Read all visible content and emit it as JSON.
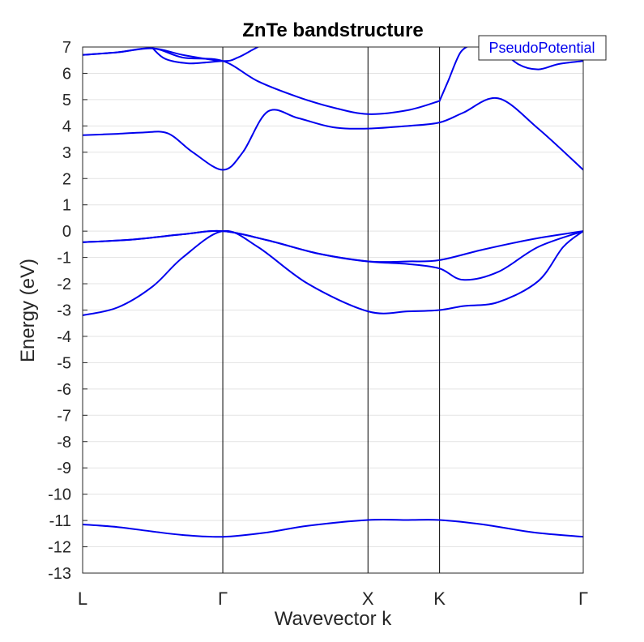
{
  "chart_data": {
    "type": "line",
    "title": "ZnTe bandstructure",
    "xlabel": "Wavevector k",
    "ylabel": "Energy (eV)",
    "ylim": [
      -13,
      7
    ],
    "yticks": [
      7,
      6,
      5,
      4,
      3,
      2,
      1,
      0,
      -1,
      -2,
      -3,
      -4,
      -5,
      -6,
      -7,
      -8,
      -9,
      -10,
      -11,
      -12,
      -13
    ],
    "x_range": [
      0,
      1
    ],
    "kpoints": [
      {
        "label": "L",
        "x": 0.0
      },
      {
        "label": "Γ",
        "x": 0.28
      },
      {
        "label": "X",
        "x": 0.57
      },
      {
        "label": "K",
        "x": 0.713
      },
      {
        "label": "Γ",
        "x": 1.0
      }
    ],
    "grid": "horizontal",
    "legend": {
      "position": "top-right",
      "entries": [
        "PseudoPotential"
      ]
    },
    "series_color": "#0000ee",
    "series": [
      {
        "x": [
          0,
          0.07,
          0.14,
          0.2,
          0.28,
          0.37,
          0.45,
          0.57,
          0.65,
          0.713,
          0.8,
          0.9,
          1.0
        ],
        "values": [
          -11.15,
          -11.25,
          -11.42,
          -11.55,
          -11.62,
          -11.45,
          -11.2,
          -10.98,
          -10.98,
          -10.98,
          -11.15,
          -11.45,
          -11.62
        ]
      },
      {
        "x": [
          0,
          0.07,
          0.14,
          0.2,
          0.28,
          0.35,
          0.45,
          0.57,
          0.65,
          0.713,
          0.76,
          0.83,
          0.91,
          0.96,
          1.0
        ],
        "values": [
          -3.2,
          -2.9,
          -2.1,
          -1.0,
          0.0,
          -0.6,
          -2.0,
          -3.05,
          -3.05,
          -3.0,
          -2.85,
          -2.7,
          -1.9,
          -0.6,
          0.0
        ]
      },
      {
        "x": [
          0,
          0.1,
          0.2,
          0.28,
          0.37,
          0.47,
          0.57,
          0.65,
          0.713,
          0.76,
          0.83,
          0.91,
          1.0
        ],
        "values": [
          -0.42,
          -0.32,
          -0.12,
          0.0,
          -0.35,
          -0.85,
          -1.15,
          -1.25,
          -1.42,
          -1.85,
          -1.55,
          -0.6,
          0.0
        ]
      },
      {
        "x": [
          0,
          0.1,
          0.2,
          0.28,
          0.37,
          0.47,
          0.57,
          0.65,
          0.713,
          0.8,
          0.9,
          1.0
        ],
        "values": [
          -0.42,
          -0.32,
          -0.12,
          0.0,
          -0.35,
          -0.85,
          -1.15,
          -1.15,
          -1.1,
          -0.7,
          -0.3,
          0.0
        ]
      },
      {
        "x": [
          0,
          0.07,
          0.12,
          0.17,
          0.22,
          0.28,
          0.32,
          0.37,
          0.43,
          0.5,
          0.57,
          0.65,
          0.713,
          0.76,
          0.83,
          0.91,
          1.0
        ],
        "values": [
          3.65,
          3.7,
          3.75,
          3.72,
          3.0,
          2.33,
          3.0,
          4.55,
          4.3,
          3.95,
          3.9,
          4.0,
          4.13,
          4.5,
          5.05,
          3.9,
          2.33
        ]
      },
      {
        "x": [
          0,
          0.07,
          0.14,
          0.2,
          0.28,
          0.35,
          0.43,
          0.5,
          0.57,
          0.65,
          0.713
        ],
        "values": [
          6.7,
          6.8,
          6.95,
          6.6,
          6.47,
          5.7,
          5.1,
          4.7,
          4.45,
          4.6,
          4.95
        ]
      },
      {
        "x": [
          0,
          0.07,
          0.14,
          0.2,
          0.28,
          0.31,
          0.34,
          0.36
        ],
        "values": [
          6.7,
          6.8,
          6.95,
          6.7,
          6.47,
          6.6,
          6.9,
          7.1
        ]
      },
      {
        "x": [
          0.14,
          0.165,
          0.21,
          0.25,
          0.28
        ],
        "values": [
          6.95,
          6.55,
          6.38,
          6.42,
          6.47
        ]
      },
      {
        "x": [
          0.713,
          0.73,
          0.755,
          0.78
        ],
        "values": [
          4.95,
          5.7,
          6.8,
          7.1
        ]
      },
      {
        "x": [
          0.83,
          0.87,
          0.91,
          0.95,
          1.0
        ],
        "values": [
          7.0,
          6.35,
          6.15,
          6.35,
          6.47
        ]
      }
    ]
  }
}
